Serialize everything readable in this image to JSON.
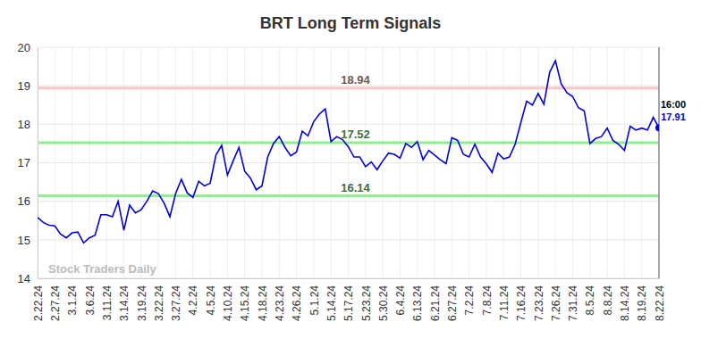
{
  "chart_data": {
    "type": "line",
    "title": "BRT Long Term Signals",
    "watermark": "Stock Traders Daily",
    "color": "#0000dd",
    "grid": true,
    "marker": "end-dot",
    "categories": [
      "2.22.24",
      null,
      null,
      "2.27.24",
      null,
      null,
      "3.1.24",
      null,
      null,
      "3.6.24",
      null,
      null,
      "3.11.24",
      null,
      null,
      "3.14.24",
      null,
      null,
      "3.19.24",
      null,
      null,
      "3.22.24",
      null,
      null,
      "3.27.24",
      null,
      null,
      "4.2.24",
      null,
      null,
      "4.5.24",
      null,
      null,
      "4.10.24",
      null,
      null,
      "4.15.24",
      null,
      null,
      "4.18.24",
      null,
      null,
      "4.23.24",
      null,
      null,
      "4.26.24",
      null,
      null,
      "5.1.24",
      null,
      null,
      "5.14.24",
      null,
      null,
      "5.17.24",
      null,
      null,
      "5.23.24",
      null,
      null,
      "5.30.24",
      null,
      null,
      "6.4.24",
      null,
      null,
      "6.13.24",
      null,
      null,
      "6.21.24",
      null,
      null,
      "6.27.24",
      null,
      null,
      "7.2.24",
      null,
      null,
      "7.8.24",
      null,
      null,
      "7.11.24",
      null,
      null,
      "7.16.24",
      null,
      null,
      "7.23.24",
      null,
      null,
      "7.26.24",
      null,
      null,
      "7.31.24",
      null,
      null,
      "8.5.24",
      null,
      null,
      "8.8.24",
      null,
      null,
      "8.14.24",
      null,
      null,
      "8.19.24",
      null,
      null,
      "8.22.24"
    ],
    "values": [
      15.58,
      15.45,
      15.38,
      15.36,
      15.15,
      15.05,
      15.18,
      15.2,
      14.92,
      15.05,
      15.12,
      15.65,
      15.65,
      15.6,
      16.0,
      15.25,
      15.9,
      15.7,
      15.78,
      16.0,
      16.27,
      16.2,
      15.95,
      15.6,
      16.2,
      16.57,
      16.22,
      16.1,
      16.52,
      16.4,
      16.47,
      17.2,
      17.45,
      16.68,
      17.05,
      17.4,
      16.78,
      16.6,
      16.3,
      16.4,
      17.15,
      17.5,
      17.68,
      17.4,
      17.18,
      17.28,
      17.82,
      17.7,
      18.07,
      18.27,
      18.4,
      17.55,
      17.68,
      17.6,
      17.42,
      17.15,
      17.15,
      16.9,
      17.02,
      16.82,
      17.05,
      17.25,
      17.22,
      17.12,
      17.5,
      17.4,
      17.55,
      17.08,
      17.32,
      17.2,
      17.08,
      16.98,
      17.65,
      17.58,
      17.22,
      17.15,
      17.48,
      17.15,
      16.97,
      16.75,
      17.25,
      17.1,
      17.15,
      17.48,
      18.05,
      18.6,
      18.5,
      18.8,
      18.52,
      19.35,
      19.65,
      19.05,
      18.82,
      18.72,
      18.43,
      18.35,
      17.5,
      17.63,
      17.68,
      17.9,
      17.58,
      17.48,
      17.32,
      17.95,
      17.85,
      17.9,
      17.85,
      18.18,
      17.91
    ],
    "ylim": [
      14,
      20
    ],
    "yticks": [
      14,
      15,
      16,
      17,
      18,
      19,
      20
    ],
    "reference_lines": [
      {
        "value": 18.94,
        "color": "#ffc4c4"
      },
      {
        "value": 17.52,
        "color": "#90ee90"
      },
      {
        "value": 16.14,
        "color": "#90ee90"
      }
    ],
    "end_labels": [
      "16:00",
      "17.91"
    ]
  }
}
